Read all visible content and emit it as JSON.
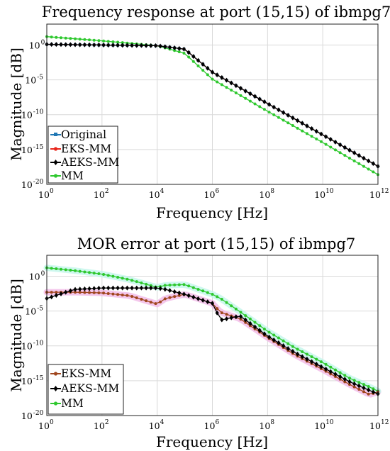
{
  "chart_data": [
    {
      "type": "line",
      "title": "Frequency response at port (15,15) of ibmpg7",
      "xlabel": "Frequency [Hz]",
      "ylabel": "Magnitude [dB]",
      "xscale": "log",
      "yscale": "log",
      "xlim": [
        1,
        1000000000000
      ],
      "ylim": [
        1e-20,
        1000
      ],
      "x_ticks": [
        {
          "base": "10",
          "exp": "0"
        },
        {
          "base": "10",
          "exp": "2"
        },
        {
          "base": "10",
          "exp": "4"
        },
        {
          "base": "10",
          "exp": "6"
        },
        {
          "base": "10",
          "exp": "8"
        },
        {
          "base": "10",
          "exp": "10"
        },
        {
          "base": "10",
          "exp": "12"
        }
      ],
      "y_ticks": [
        {
          "base": "10",
          "exp": "0"
        },
        {
          "base": "10",
          "exp": "-5"
        },
        {
          "base": "10",
          "exp": "-10"
        },
        {
          "base": "10",
          "exp": "-15"
        },
        {
          "base": "10",
          "exp": "-20"
        }
      ],
      "grid": true,
      "legend_position": "bottom-left",
      "x": [
        1,
        100,
        10000,
        100000,
        1000000,
        100000000,
        10000000000,
        1000000000000
      ],
      "series": [
        {
          "name": "Original",
          "color": "#1f77b4",
          "marker": "square",
          "log10_values": [
            0.1,
            0.0,
            -0.1,
            -0.6,
            -3.9,
            -8.4,
            -12.9,
            -17.4
          ]
        },
        {
          "name": "EKS-MM",
          "color": "#e8251b",
          "marker": "circle",
          "log10_values": [
            0.1,
            0.0,
            -0.1,
            -0.6,
            -3.9,
            -8.4,
            -12.9,
            -17.4
          ]
        },
        {
          "name": "AEKS-MM",
          "color": "#000000",
          "marker": "diamond",
          "log10_values": [
            0.1,
            0.0,
            -0.1,
            -0.6,
            -3.9,
            -8.4,
            -12.9,
            -17.4
          ]
        },
        {
          "name": "MM",
          "color": "#2ec82e",
          "marker": "circle",
          "log10_values": [
            1.2,
            0.6,
            -0.1,
            -1.2,
            -4.9,
            -9.5,
            -14.0,
            -18.6
          ]
        }
      ]
    },
    {
      "type": "line",
      "title": "MOR error at port (15,15) of ibmpg7",
      "xlabel": "Frequency [Hz]",
      "ylabel": "Magnitude [dB]",
      "xscale": "log",
      "yscale": "log",
      "xlim": [
        1,
        1000000000000
      ],
      "ylim": [
        1e-20,
        1000
      ],
      "x_ticks": [
        {
          "base": "10",
          "exp": "0"
        },
        {
          "base": "10",
          "exp": "2"
        },
        {
          "base": "10",
          "exp": "4"
        },
        {
          "base": "10",
          "exp": "6"
        },
        {
          "base": "10",
          "exp": "8"
        },
        {
          "base": "10",
          "exp": "10"
        },
        {
          "base": "10",
          "exp": "12"
        }
      ],
      "y_ticks": [
        {
          "base": "10",
          "exp": "0"
        },
        {
          "base": "10",
          "exp": "-5"
        },
        {
          "base": "10",
          "exp": "-10"
        },
        {
          "base": "10",
          "exp": "-15"
        },
        {
          "base": "10",
          "exp": "-20"
        }
      ],
      "grid": true,
      "legend_position": "bottom-left",
      "x": [
        1,
        10,
        100,
        1000,
        10000,
        20000,
        100000,
        1000000,
        2000000,
        10000000,
        100000000,
        1000000000,
        10000000000,
        100000000000,
        500000000000,
        1000000000000
      ],
      "series": [
        {
          "name": "EKS-MM",
          "color": "#a0461e",
          "marker": "circle",
          "band_color": "#f0b4e6",
          "log10_values": [
            -2.3,
            -2.3,
            -2.4,
            -2.8,
            -4.0,
            -3.2,
            -2.6,
            -3.9,
            -5.2,
            -6.1,
            -8.8,
            -11.3,
            -13.4,
            -15.6,
            -17.0,
            -16.6
          ]
        },
        {
          "name": "AEKS-MM",
          "color": "#000000",
          "marker": "diamond",
          "log10_values": [
            -3.2,
            -1.9,
            -1.7,
            -1.7,
            -1.7,
            -1.9,
            -2.6,
            -3.9,
            -6.3,
            -5.7,
            -8.6,
            -11.0,
            -13.1,
            -15.2,
            -16.4,
            -16.9
          ]
        },
        {
          "name": "MM",
          "color": "#2ec82e",
          "marker": "circle",
          "band_color": "#bff5ea",
          "log10_values": [
            1.2,
            0.8,
            0.3,
            -0.5,
            -1.6,
            -1.3,
            -1.2,
            -2.6,
            -3.2,
            -5.1,
            -7.9,
            -10.3,
            -12.4,
            -14.7,
            -15.9,
            -16.5
          ]
        }
      ]
    }
  ]
}
